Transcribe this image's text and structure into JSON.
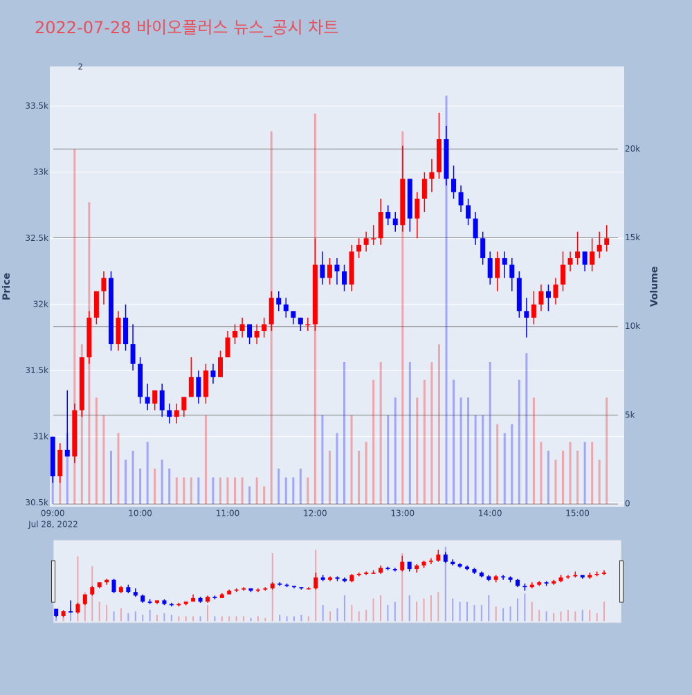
{
  "chart_data": {
    "type": "candlestick",
    "title": "2022-07-28 바이오플러스 뉴스_공시 차트",
    "y_label": "Price",
    "y2_label": "Volume",
    "x_date_label": "Jul 28, 2022",
    "annotations": [
      {
        "text": "2",
        "x": "2022-07-28 09:19"
      }
    ],
    "up_color": "#ff0000",
    "down_color": "#0000ff",
    "grid": true,
    "range_slider": true,
    "xlim": [
      "2022-07-28 08:58",
      "2022-07-28 15:32"
    ],
    "xticks": [
      {
        "value": "2022-07-28 09:00",
        "label": "09:00"
      },
      {
        "value": "2022-07-28 10:00",
        "label": "10:00"
      },
      {
        "value": "2022-07-28 11:00",
        "label": "11:00"
      },
      {
        "value": "2022-07-28 12:00",
        "label": "12:00"
      },
      {
        "value": "2022-07-28 13:00",
        "label": "13:00"
      },
      {
        "value": "2022-07-28 14:00",
        "label": "14:00"
      },
      {
        "value": "2022-07-28 15:00",
        "label": "15:00"
      }
    ],
    "ylim": [
      30470,
      33800
    ],
    "yticks": [
      {
        "value": 30500,
        "label": "30.5k"
      },
      {
        "value": 31000,
        "label": "31k"
      },
      {
        "value": 31500,
        "label": "31.5k"
      },
      {
        "value": 32000,
        "label": "32k"
      },
      {
        "value": 32500,
        "label": "32.5k"
      },
      {
        "value": 33000,
        "label": "33k"
      },
      {
        "value": 33500,
        "label": "33.5k"
      }
    ],
    "y2lim": [
      -150,
      24650
    ],
    "y2ticks": [
      0,
      {
        "value": 5000,
        "label": "5k"
      },
      {
        "value": 10000,
        "label": "10k"
      },
      {
        "value": 15000,
        "label": "15k"
      },
      {
        "value": 20000,
        "label": "20k"
      }
    ],
    "x": [
      "2022-07-28 09:00",
      "2022-07-28 09:05",
      "2022-07-28 09:10",
      "2022-07-28 09:15",
      "2022-07-28 09:20",
      "2022-07-28 09:25",
      "2022-07-28 09:30",
      "2022-07-28 09:35",
      "2022-07-28 09:40",
      "2022-07-28 09:45",
      "2022-07-28 09:50",
      "2022-07-28 09:55",
      "2022-07-28 10:00",
      "2022-07-28 10:05",
      "2022-07-28 10:10",
      "2022-07-28 10:15",
      "2022-07-28 10:20",
      "2022-07-28 10:25",
      "2022-07-28 10:30",
      "2022-07-28 10:35",
      "2022-07-28 10:40",
      "2022-07-28 10:45",
      "2022-07-28 10:50",
      "2022-07-28 10:55",
      "2022-07-28 11:00",
      "2022-07-28 11:05",
      "2022-07-28 11:10",
      "2022-07-28 11:15",
      "2022-07-28 11:20",
      "2022-07-28 11:25",
      "2022-07-28 11:30",
      "2022-07-28 11:35",
      "2022-07-28 11:40",
      "2022-07-28 11:45",
      "2022-07-28 11:50",
      "2022-07-28 11:55",
      "2022-07-28 12:00",
      "2022-07-28 12:05",
      "2022-07-28 12:10",
      "2022-07-28 12:15",
      "2022-07-28 12:20",
      "2022-07-28 12:25",
      "2022-07-28 12:30",
      "2022-07-28 12:35",
      "2022-07-28 12:40",
      "2022-07-28 12:45",
      "2022-07-28 12:50",
      "2022-07-28 12:55",
      "2022-07-28 13:00",
      "2022-07-28 13:05",
      "2022-07-28 13:10",
      "2022-07-28 13:15",
      "2022-07-28 13:20",
      "2022-07-28 13:25",
      "2022-07-28 13:30",
      "2022-07-28 13:35",
      "2022-07-28 13:40",
      "2022-07-28 13:45",
      "2022-07-28 13:50",
      "2022-07-28 13:55",
      "2022-07-28 14:00",
      "2022-07-28 14:05",
      "2022-07-28 14:10",
      "2022-07-28 14:15",
      "2022-07-28 14:20",
      "2022-07-28 14:25",
      "2022-07-28 14:30",
      "2022-07-28 14:35",
      "2022-07-28 14:40",
      "2022-07-28 14:45",
      "2022-07-28 14:50",
      "2022-07-28 14:55",
      "2022-07-28 15:00",
      "2022-07-28 15:05",
      "2022-07-28 15:10",
      "2022-07-28 15:15",
      "2022-07-28 15:20"
    ],
    "open": [
      31000,
      30700,
      30900,
      30850,
      31200,
      31600,
      31900,
      32100,
      32200,
      31700,
      31900,
      31700,
      31550,
      31300,
      31250,
      31350,
      31200,
      31150,
      31200,
      31300,
      31450,
      31300,
      31500,
      31450,
      31600,
      31750,
      31800,
      31850,
      31750,
      31800,
      31850,
      32050,
      32000,
      31950,
      31900,
      31850,
      31850,
      32300,
      32200,
      32300,
      32250,
      32150,
      32400,
      32450,
      32500,
      32500,
      32700,
      32650,
      32600,
      32950,
      32650,
      32800,
      32950,
      33000,
      33250,
      32950,
      32850,
      32750,
      32650,
      32500,
      32350,
      32200,
      32350,
      32300,
      32200,
      31950,
      31900,
      32000,
      32100,
      32050,
      32150,
      32300,
      32350,
      32400,
      32300,
      32400,
      32450
    ],
    "high": [
      31000,
      30950,
      31350,
      31250,
      31600,
      31950,
      32100,
      32250,
      32250,
      31950,
      32000,
      31850,
      31600,
      31400,
      31350,
      31400,
      31250,
      31250,
      31300,
      31600,
      31500,
      31550,
      31550,
      31650,
      31800,
      31850,
      31900,
      31850,
      31850,
      31900,
      32100,
      32100,
      32050,
      31950,
      31900,
      31900,
      32500,
      32400,
      32350,
      32350,
      32300,
      32450,
      32500,
      32550,
      32600,
      32800,
      32750,
      32700,
      33200,
      32950,
      32850,
      33000,
      33100,
      33450,
      33350,
      33050,
      32900,
      32800,
      32700,
      32550,
      32400,
      32400,
      32400,
      32350,
      32250,
      32050,
      32100,
      32150,
      32150,
      32200,
      32400,
      32400,
      32550,
      32400,
      32500,
      32550,
      32600
    ],
    "low": [
      30650,
      30650,
      30850,
      30800,
      31150,
      31550,
      31850,
      32000,
      31650,
      31650,
      31650,
      31500,
      31250,
      31200,
      31200,
      31150,
      31100,
      31100,
      31150,
      31300,
      31250,
      31250,
      31400,
      31450,
      31600,
      31700,
      31750,
      31700,
      31700,
      31750,
      31800,
      31950,
      31900,
      31850,
      31800,
      31800,
      31800,
      32150,
      32150,
      32150,
      32100,
      32100,
      32350,
      32400,
      32450,
      32450,
      32600,
      32550,
      32550,
      32550,
      32500,
      32700,
      32850,
      32950,
      32900,
      32800,
      32700,
      32600,
      32450,
      32300,
      32150,
      32100,
      32200,
      32100,
      31900,
      31750,
      31850,
      31950,
      31950,
      32000,
      32100,
      32250,
      32300,
      32250,
      32250,
      32350,
      32400
    ],
    "close": [
      30700,
      30900,
      30850,
      31200,
      31600,
      31900,
      32100,
      32200,
      31700,
      31900,
      31700,
      31550,
      31300,
      31250,
      31350,
      31200,
      31150,
      31200,
      31300,
      31450,
      31300,
      31500,
      31450,
      31600,
      31750,
      31800,
      31850,
      31750,
      31800,
      31850,
      32050,
      32000,
      31950,
      31900,
      31850,
      31850,
      32300,
      32200,
      32300,
      32250,
      32150,
      32400,
      32450,
      32500,
      32500,
      32700,
      32650,
      32600,
      32950,
      32650,
      32800,
      32950,
      33000,
      33250,
      32950,
      32850,
      32750,
      32650,
      32500,
      32350,
      32200,
      32350,
      32300,
      32200,
      31950,
      31900,
      32000,
      32100,
      32050,
      32150,
      32300,
      32350,
      32400,
      32300,
      32400,
      32450,
      32500
    ],
    "volume": [
      2500,
      3000,
      4000,
      20000,
      9000,
      17000,
      6000,
      5000,
      3000,
      4000,
      2500,
      3000,
      2000,
      3500,
      2000,
      2500,
      2000,
      1500,
      1500,
      1500,
      1500,
      5000,
      1500,
      1500,
      1500,
      1500,
      1500,
      1000,
      1500,
      1000,
      21000,
      2000,
      1500,
      1500,
      2000,
      1500,
      22000,
      5000,
      3000,
      4000,
      8000,
      5000,
      3000,
      3500,
      7000,
      8000,
      5000,
      6000,
      21000,
      8000,
      6000,
      7000,
      8000,
      9000,
      23000,
      7000,
      6000,
      6000,
      5000,
      5000,
      8000,
      4500,
      4000,
      4500,
      7000,
      8500,
      6000,
      3500,
      3000,
      2500,
      3000,
      3500,
      3000,
      3500,
      3500,
      2500,
      6000
    ]
  }
}
